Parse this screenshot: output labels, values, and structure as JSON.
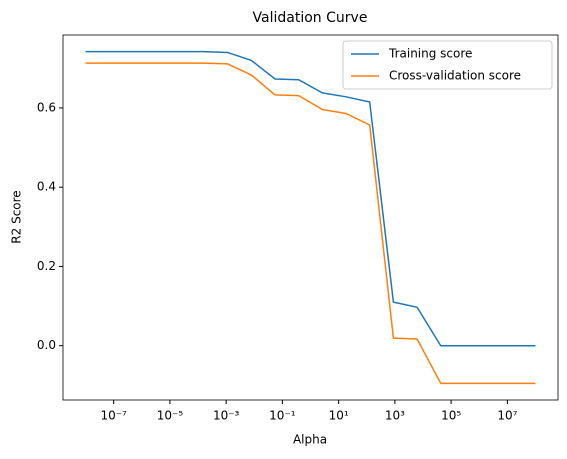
{
  "chart_data": {
    "type": "line",
    "title": "Validation Curve",
    "xlabel": "Alpha",
    "ylabel": "R2 Score",
    "xscale": "log",
    "x": [
      1e-08,
      6.95e-08,
      4.83e-07,
      3.36e-06,
      2.34e-05,
      0.000162,
      0.00113,
      0.00785,
      0.0546,
      0.379,
      2.64,
      18.3,
      127,
      886,
      6158,
      42813,
      297635,
      2069138,
      14384499,
      100000000.0
    ],
    "series": [
      {
        "name": "Training score",
        "color": "#1f77b4",
        "values": [
          0.742,
          0.742,
          0.742,
          0.742,
          0.742,
          0.742,
          0.74,
          0.72,
          0.673,
          0.671,
          0.638,
          0.628,
          0.615,
          0.11,
          0.097,
          0.0,
          0.0,
          0.0,
          0.0,
          0.0
        ]
      },
      {
        "name": "Cross-validation score",
        "color": "#ff7f0e",
        "values": [
          0.713,
          0.713,
          0.713,
          0.713,
          0.713,
          0.713,
          0.711,
          0.683,
          0.633,
          0.631,
          0.596,
          0.586,
          0.557,
          0.019,
          0.017,
          -0.095,
          -0.095,
          -0.095,
          -0.095,
          -0.095
        ]
      }
    ],
    "xlim": [
      1.58e-09,
      631000000.0
    ],
    "xticks": [
      {
        "value": 1e-07,
        "label": "10⁻⁷"
      },
      {
        "value": 1e-05,
        "label": "10⁻⁵"
      },
      {
        "value": 0.001,
        "label": "10⁻³"
      },
      {
        "value": 0.1,
        "label": "10⁻¹"
      },
      {
        "value": 10,
        "label": "10¹"
      },
      {
        "value": 1000,
        "label": "10³"
      },
      {
        "value": 100000,
        "label": "10⁵"
      },
      {
        "value": 10000000,
        "label": "10⁷"
      }
    ],
    "ylim": [
      -0.137,
      0.784
    ],
    "yticks": [
      {
        "value": 0,
        "label": "0.0"
      },
      0.2,
      0.4,
      0.6
    ],
    "grid": false,
    "legend": "upper right"
  }
}
